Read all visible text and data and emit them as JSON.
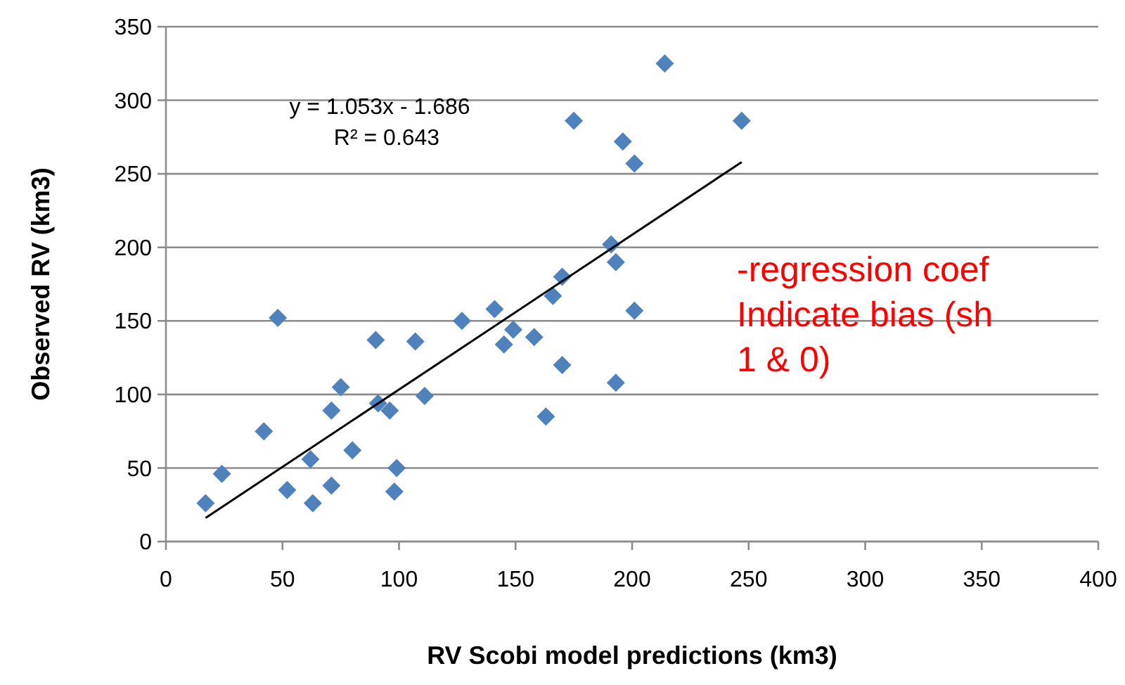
{
  "chart_data": {
    "type": "scatter",
    "xlabel": "RV Scobi model predictions (km3)",
    "ylabel": "Observed RV (km3)",
    "xlim": [
      0,
      400
    ],
    "ylim": [
      0,
      350
    ],
    "xticks": [
      0,
      50,
      100,
      150,
      200,
      250,
      300,
      350,
      400
    ],
    "yticks": [
      0,
      50,
      100,
      150,
      200,
      250,
      300,
      350
    ],
    "grid": "y",
    "annotations": [
      "y = 1.053x - 1.686",
      "R² = 0.643",
      "-regression coef",
      "Indicate bias (sh",
      "1 & 0)"
    ],
    "series": [
      {
        "color": "#4f81bd",
        "marker": "diamond",
        "x": [
          17,
          24,
          42,
          48,
          52,
          62,
          63,
          71,
          71,
          75,
          80,
          90,
          91,
          96,
          99,
          98,
          107,
          111,
          127,
          141,
          149,
          145,
          158,
          163,
          170,
          166,
          170,
          175,
          191,
          193,
          193,
          196,
          201,
          201,
          214,
          247
        ],
        "values": [
          26,
          46,
          75,
          152,
          35,
          56,
          26,
          38,
          89,
          105,
          62,
          137,
          94,
          89,
          50,
          34,
          136,
          99,
          150,
          158,
          144,
          134,
          139,
          85,
          120,
          167,
          180,
          286,
          202,
          190,
          108,
          272,
          257,
          157,
          325,
          286
        ]
      },
      {
        "type": "line",
        "color": "#000000",
        "marker": "none",
        "line_style": "solid",
        "x": [
          17,
          247
        ],
        "values": [
          16,
          258
        ]
      }
    ]
  }
}
